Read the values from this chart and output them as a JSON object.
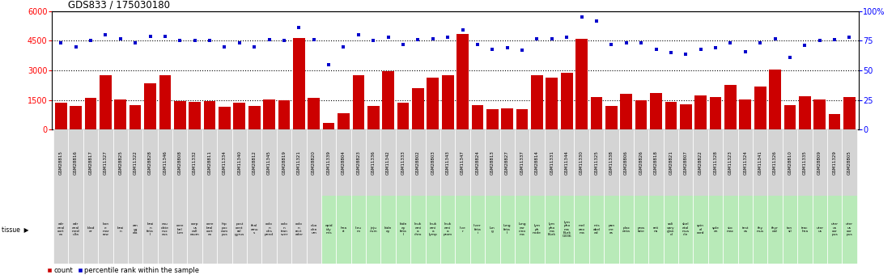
{
  "title": "GDS833 / 175030180",
  "samples": [
    "GSM28815",
    "GSM28816",
    "GSM28817",
    "GSM11327",
    "GSM28825",
    "GSM11322",
    "GSM28828",
    "GSM11346",
    "GSM28808",
    "GSM11332",
    "GSM28811",
    "GSM11334",
    "GSM11340",
    "GSM28812",
    "GSM11345",
    "GSM28819",
    "GSM11321",
    "GSM28820",
    "GSM11339",
    "GSM28804",
    "GSM28823",
    "GSM11336",
    "GSM11342",
    "GSM11333",
    "GSM28802",
    "GSM28803",
    "GSM11343",
    "GSM11347",
    "GSM28824",
    "GSM28813",
    "GSM28827",
    "GSM11337",
    "GSM28814",
    "GSM11331",
    "GSM11344",
    "GSM11330",
    "GSM11325",
    "GSM11338",
    "GSM28806",
    "GSM28826",
    "GSM28818",
    "GSM28821",
    "GSM28807",
    "GSM28822",
    "GSM11328",
    "GSM11323",
    "GSM11324",
    "GSM11341",
    "GSM11326",
    "GSM28810",
    "GSM11335",
    "GSM28809",
    "GSM11329",
    "GSM28805"
  ],
  "tissues": [
    "adr\nenal\ncort\nex",
    "adr\nenal\nmed\nulla",
    "blad\ner",
    "bon\ne\nmar\nrow",
    "brai\nn",
    "am\nyg\nala",
    "brai\nn\nfeta\nl",
    "cau\ndate\nnuc\neus",
    "cere\nbel\nlum",
    "corp\nus\ncall\nosum",
    "cere\nbral\ncort\nex",
    "hip\npoc\ncam\npus",
    "post\ncent\nral\ngyrus",
    "thal\namu\ns",
    "colo\nn\ndes\npend",
    "colo\nn\ntran\nsver",
    "colo\nn\nrect\nader",
    "duo\nden\num",
    "epid\nidy\nmis",
    "hea\nrt",
    "ileu\nm",
    "jeju\nnum",
    "kidn\ney",
    "kidn\ney\nfeta\nl",
    "leuk\nemi\na\nchro",
    "leuk\nemi\na\nlymp",
    "leuk\nemi\na\nprom",
    "live\nr",
    "liver\nfeta\ni",
    "lun\ng",
    "lung\nfeta\nl",
    "lung\ncar\ncino\nma",
    "lym\nph\nnode",
    "lym\npho\nma\nBurk",
    "lym\npho\nma\nBurk\nG336",
    "mel\nano\nma",
    "mis\nabel\ned",
    "pan\ncre\nas",
    "plac\nenta",
    "pros\ntate",
    "reti\nna",
    "sali\nvary\nglan\nd",
    "skel\netal\nmus\ncle",
    "spin\nal\ncord",
    "sple\nen",
    "sto\nmac",
    "test\nes",
    "thy\nmus",
    "thyr\noid",
    "ton\nsil",
    "trac\nhea",
    "uter\nus",
    "uter\nus\ncor\npus",
    "uter\nus\ncor\npus"
  ],
  "tissue_colors": [
    0,
    0,
    0,
    0,
    0,
    0,
    0,
    0,
    0,
    0,
    0,
    0,
    0,
    0,
    0,
    0,
    0,
    0,
    1,
    1,
    1,
    1,
    1,
    1,
    1,
    1,
    1,
    1,
    1,
    1,
    1,
    1,
    1,
    1,
    1,
    1,
    1,
    1,
    1,
    1,
    1,
    1,
    1,
    1,
    1,
    1,
    1,
    1,
    1,
    1,
    1,
    1,
    1,
    1
  ],
  "counts": [
    1350,
    1200,
    1600,
    2750,
    1550,
    1250,
    2350,
    2750,
    1450,
    1400,
    1450,
    1150,
    1350,
    1200,
    1550,
    1500,
    4650,
    1600,
    350,
    850,
    2750,
    1200,
    2950,
    1350,
    2100,
    2650,
    2750,
    4850,
    1250,
    1050,
    1100,
    1050,
    2750,
    2650,
    2900,
    4600,
    1650,
    1200,
    1800,
    1500,
    1850,
    1400,
    1300,
    1750,
    1650,
    2250,
    1550,
    2200,
    3050,
    1250,
    1700,
    1550,
    800,
    1650
  ],
  "percentiles": [
    73,
    70,
    75,
    80,
    77,
    73,
    79,
    79,
    75,
    75,
    75,
    70,
    73,
    70,
    76,
    75,
    86,
    76,
    55,
    70,
    80,
    75,
    78,
    72,
    76,
    77,
    78,
    84,
    72,
    68,
    69,
    67,
    77,
    77,
    78,
    95,
    92,
    72,
    73,
    73,
    68,
    65,
    64,
    68,
    69,
    73,
    66,
    73,
    77,
    61,
    71,
    75,
    76,
    78
  ],
  "bar_color": "#cc0000",
  "dot_color": "#0000cc",
  "left_ylim": [
    0,
    6000
  ],
  "right_ylim": [
    0,
    100
  ],
  "left_yticks": [
    0,
    1500,
    3000,
    4500,
    6000
  ],
  "right_yticks": [
    0,
    25,
    50,
    75,
    100
  ],
  "grid_values": [
    1500,
    3000,
    4500
  ],
  "tissue_bg_gray": "#d4d4d4",
  "tissue_bg_green": "#b8eab8"
}
